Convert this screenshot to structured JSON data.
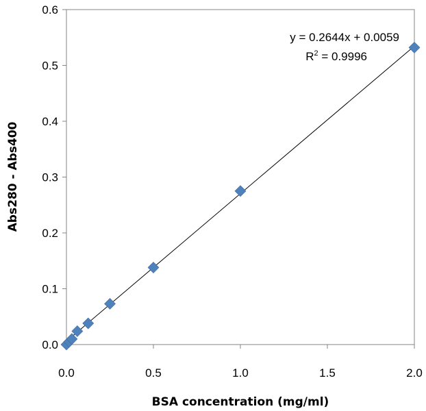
{
  "chart_data": {
    "type": "scatter",
    "xlabel": "BSA concentration (mg/ml)",
    "ylabel": "Abs280 - Abs400",
    "xlim": [
      0,
      2.0
    ],
    "ylim": [
      0,
      0.6
    ],
    "x_ticks": [
      "0.0",
      "0.5",
      "1.0",
      "1.5",
      "2.0"
    ],
    "y_ticks": [
      "0.0",
      "0.1",
      "0.2",
      "0.3",
      "0.4",
      "0.5",
      "0.6"
    ],
    "grid": false,
    "legend": "none",
    "series": [
      {
        "marker": "diamond",
        "color": "#4F81BD",
        "points": [
          {
            "x": 0,
            "y": 0
          },
          {
            "x": 0.0156,
            "y": 0.005
          },
          {
            "x": 0.03125,
            "y": 0.01
          },
          {
            "x": 0.0625,
            "y": 0.024
          },
          {
            "x": 0.125,
            "y": 0.038
          },
          {
            "x": 0.25,
            "y": 0.073
          },
          {
            "x": 0.5,
            "y": 0.138
          },
          {
            "x": 1.0,
            "y": 0.275
          },
          {
            "x": 2.0,
            "y": 0.532
          }
        ]
      }
    ],
    "trendline": {
      "type": "linear",
      "slope": 0.2644,
      "intercept": 0.0059,
      "color": "#000000"
    },
    "annotations": {
      "equation": "y = 0.2644x + 0.0059",
      "r2_prefix": "R",
      "r2_superscript": "2",
      "r2_suffix": " = 0.9996"
    }
  }
}
